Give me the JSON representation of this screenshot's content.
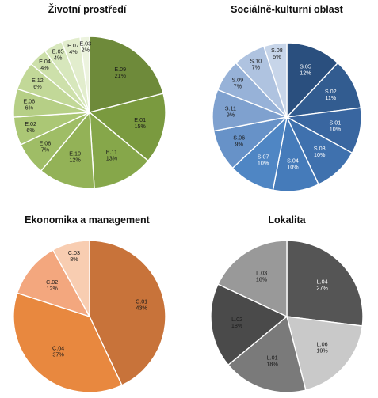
{
  "chart_data": [
    {
      "type": "pie",
      "title": "Životní prostředí",
      "start": "top",
      "direction": "clockwise",
      "slices": [
        {
          "label": "E.09",
          "value": 21,
          "pct": "21%",
          "color": "#6e8a3a",
          "text": "#1a1a1a"
        },
        {
          "label": "E.01",
          "value": 15,
          "pct": "15%",
          "color": "#7a9a3f",
          "text": "#1a1a1a"
        },
        {
          "label": "E.11",
          "value": 13,
          "pct": "13%",
          "color": "#86a74a",
          "text": "#1a1a1a"
        },
        {
          "label": "E.10",
          "value": 12,
          "pct": "12%",
          "color": "#93b257",
          "text": "#1a1a1a"
        },
        {
          "label": "E.08",
          "value": 7,
          "pct": "7%",
          "color": "#9fbd66",
          "text": "#1a1a1a"
        },
        {
          "label": "E.02",
          "value": 6,
          "pct": "6%",
          "color": "#abc775",
          "text": "#1a1a1a"
        },
        {
          "label": "E.06",
          "value": 6,
          "pct": "6%",
          "color": "#b6cf86",
          "text": "#1a1a1a"
        },
        {
          "label": "E.12",
          "value": 6,
          "pct": "6%",
          "color": "#c2d898",
          "text": "#1a1a1a"
        },
        {
          "label": "E.04",
          "value": 4,
          "pct": "4%",
          "color": "#cde0aa",
          "text": "#1a1a1a"
        },
        {
          "label": "E.05",
          "value": 4,
          "pct": "4%",
          "color": "#d7e7bc",
          "text": "#1a1a1a"
        },
        {
          "label": "E.07",
          "value": 4,
          "pct": "4%",
          "color": "#e2edcd",
          "text": "#1a1a1a"
        },
        {
          "label": "E.03",
          "value": 2,
          "pct": "2%",
          "color": "#ecf3de",
          "text": "#1a1a1a"
        }
      ]
    },
    {
      "type": "pie",
      "title": "Sociálně-kulturní oblast",
      "start": "top",
      "direction": "clockwise",
      "slices": [
        {
          "label": "S.05",
          "value": 12,
          "pct": "12%",
          "color": "#2a4f7e",
          "text": "#ffffff"
        },
        {
          "label": "S.02",
          "value": 11,
          "pct": "11%",
          "color": "#325c90",
          "text": "#ffffff"
        },
        {
          "label": "S.01",
          "value": 10,
          "pct": "10%",
          "color": "#3966a0",
          "text": "#ffffff"
        },
        {
          "label": "S.03",
          "value": 10,
          "pct": "10%",
          "color": "#3f71ae",
          "text": "#ffffff"
        },
        {
          "label": "S.04",
          "value": 10,
          "pct": "10%",
          "color": "#457bba",
          "text": "#ffffff"
        },
        {
          "label": "S.07",
          "value": 10,
          "pct": "10%",
          "color": "#4f86c4",
          "text": "#ffffff"
        },
        {
          "label": "S.06",
          "value": 9,
          "pct": "9%",
          "color": "#6792c8",
          "text": "#1a1a1a"
        },
        {
          "label": "S.11",
          "value": 9,
          "pct": "9%",
          "color": "#7fa1cf",
          "text": "#1a1a1a"
        },
        {
          "label": "S.09",
          "value": 7,
          "pct": "7%",
          "color": "#97b2d8",
          "text": "#1a1a1a"
        },
        {
          "label": "S.10",
          "value": 7,
          "pct": "7%",
          "color": "#afc3e0",
          "text": "#1a1a1a"
        },
        {
          "label": "S.08",
          "value": 5,
          "pct": "5%",
          "color": "#c7d5e9",
          "text": "#1a1a1a"
        }
      ]
    },
    {
      "type": "pie",
      "title": "Ekonomika a management",
      "start": "top",
      "direction": "clockwise",
      "slices": [
        {
          "label": "C.01",
          "value": 43,
          "pct": "43%",
          "color": "#c8733a",
          "text": "#1a1a1a"
        },
        {
          "label": "C.04",
          "value": 37,
          "pct": "37%",
          "color": "#e8883f",
          "text": "#1a1a1a"
        },
        {
          "label": "C.02",
          "value": 12,
          "pct": "12%",
          "color": "#f3a77e",
          "text": "#1a1a1a"
        },
        {
          "label": "C.03",
          "value": 8,
          "pct": "8%",
          "color": "#f8cdb1",
          "text": "#1a1a1a"
        }
      ]
    },
    {
      "type": "pie",
      "title": "Lokalita",
      "start": "top",
      "direction": "clockwise",
      "slices": [
        {
          "label": "L.04",
          "value": 27,
          "pct": "27%",
          "color": "#555555",
          "text": "#ffffff"
        },
        {
          "label": "L.06",
          "value": 19,
          "pct": "19%",
          "color": "#c9c9c9",
          "text": "#1a1a1a"
        },
        {
          "label": "L.01",
          "value": 18,
          "pct": "18%",
          "color": "#7a7a7a",
          "text": "#1a1a1a"
        },
        {
          "label": "L.02",
          "value": 18,
          "pct": "18%",
          "color": "#4a4a4a",
          "text": "#1a1a1a"
        },
        {
          "label": "L.03",
          "value": 18,
          "pct": "18%",
          "color": "#999999",
          "text": "#1a1a1a"
        }
      ]
    }
  ]
}
